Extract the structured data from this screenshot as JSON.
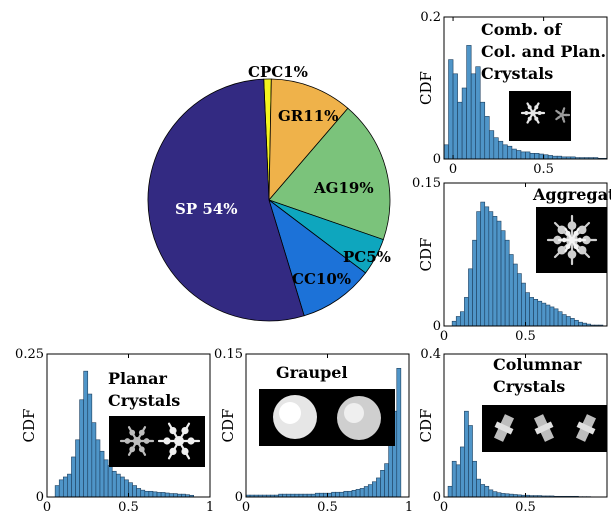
{
  "colors": {
    "bar_fill": "#4f95c8",
    "bar_edge": "#1d3f5e",
    "photo_bg": "#000000"
  },
  "chart_data": [
    {
      "id": "pie",
      "type": "pie",
      "title": "",
      "slices": [
        {
          "label": "SP",
          "value_label": "54%",
          "value": 54,
          "color": "#332a82"
        },
        {
          "label": "CC",
          "value_label": "10%",
          "value": 10,
          "color": "#1c72d8"
        },
        {
          "label": "PC",
          "value_label": "5%",
          "value": 5,
          "color": "#0ea6be"
        },
        {
          "label": "AG",
          "value_label": "19%",
          "value": 19,
          "color": "#7bc37b"
        },
        {
          "label": "GR",
          "value_label": "11%",
          "value": 11,
          "color": "#efb24a"
        },
        {
          "label": "CPC",
          "value_label": "1%",
          "value": 1,
          "color": "#f5f51e"
        }
      ]
    },
    {
      "id": "cpc",
      "type": "bar",
      "title_lines": [
        "Comb. of",
        "Col. and Plan.",
        "Crystals"
      ],
      "ylabel": "CDF",
      "xlim": [
        -0.05,
        0.85
      ],
      "ylim": [
        0,
        0.2
      ],
      "xticks": [
        0,
        0.5
      ],
      "xtick_labels": [
        "0",
        "0.5"
      ],
      "yticks": [
        0,
        0.2
      ],
      "ytick_labels": [
        "0",
        "0.2"
      ],
      "bin_width": 0.025,
      "bin_start": -0.05,
      "values": [
        0.02,
        0.14,
        0.12,
        0.08,
        0.1,
        0.16,
        0.12,
        0.13,
        0.08,
        0.06,
        0.04,
        0.03,
        0.025,
        0.02,
        0.018,
        0.014,
        0.012,
        0.01,
        0.01,
        0.008,
        0.008,
        0.007,
        0.006,
        0.005,
        0.004,
        0.004,
        0.003,
        0.003,
        0.003,
        0.002,
        0.002,
        0.002,
        0.002,
        0.002,
        0.001,
        0.001
      ],
      "photo": "snowflakes"
    },
    {
      "id": "ag",
      "type": "bar",
      "title_lines": [
        "Aggregates"
      ],
      "ylabel": "CDF",
      "xlim": [
        0,
        1
      ],
      "ylim": [
        0,
        0.15
      ],
      "xticks": [
        0,
        0.5,
        1
      ],
      "xtick_labels": [
        "0",
        "0.5",
        ""
      ],
      "yticks": [
        0,
        0.15
      ],
      "ytick_labels": [
        "0",
        "0.15"
      ],
      "bin_width": 0.025,
      "bin_start": 0.05,
      "values": [
        0.005,
        0.01,
        0.015,
        0.03,
        0.06,
        0.09,
        0.12,
        0.13,
        0.125,
        0.12,
        0.115,
        0.11,
        0.1,
        0.09,
        0.075,
        0.065,
        0.055,
        0.045,
        0.035,
        0.03,
        0.028,
        0.026,
        0.024,
        0.022,
        0.02,
        0.018,
        0.015,
        0.012,
        0.01,
        0.008,
        0.006,
        0.004,
        0.003,
        0.002,
        0.001,
        0.001,
        0.001
      ],
      "photo": "aggregate"
    },
    {
      "id": "pl",
      "type": "bar",
      "title_lines": [
        "Planar",
        "Crystals"
      ],
      "ylabel": "CDF",
      "xlim": [
        0,
        1
      ],
      "ylim": [
        0,
        0.25
      ],
      "xticks": [
        0,
        0.5,
        1
      ],
      "xtick_labels": [
        "0",
        "0.5",
        "1"
      ],
      "yticks": [
        0,
        0.25
      ],
      "ytick_labels": [
        "0",
        "0.25"
      ],
      "bin_width": 0.025,
      "bin_start": 0.05,
      "values": [
        0.02,
        0.03,
        0.035,
        0.04,
        0.07,
        0.1,
        0.17,
        0.22,
        0.18,
        0.13,
        0.1,
        0.08,
        0.065,
        0.055,
        0.045,
        0.04,
        0.035,
        0.03,
        0.025,
        0.02,
        0.015,
        0.012,
        0.01,
        0.01,
        0.009,
        0.008,
        0.008,
        0.007,
        0.006,
        0.006,
        0.005,
        0.005,
        0.004,
        0.003
      ],
      "photo": "planar"
    },
    {
      "id": "gr",
      "type": "bar",
      "title_lines": [
        "Graupel"
      ],
      "ylabel": "CDF",
      "xlim": [
        0,
        1
      ],
      "ylim": [
        0,
        0.15
      ],
      "xticks": [
        0,
        0.5,
        1
      ],
      "xtick_labels": [
        "0",
        "0.5",
        "1"
      ],
      "yticks": [
        0,
        0.15
      ],
      "ytick_labels": [
        "0",
        "0.15"
      ],
      "bin_width": 0.025,
      "bin_start": 0.0,
      "values": [
        0.002,
        0.002,
        0.002,
        0.002,
        0.002,
        0.002,
        0.002,
        0.002,
        0.003,
        0.003,
        0.003,
        0.003,
        0.003,
        0.003,
        0.003,
        0.003,
        0.003,
        0.004,
        0.004,
        0.004,
        0.004,
        0.005,
        0.005,
        0.005,
        0.006,
        0.006,
        0.007,
        0.008,
        0.009,
        0.011,
        0.013,
        0.016,
        0.02,
        0.028,
        0.035,
        0.06,
        0.09,
        0.135
      ],
      "photo": "graupel"
    },
    {
      "id": "cc",
      "type": "bar",
      "title_lines": [
        "Columnar",
        "Crystals"
      ],
      "ylabel": "CDF",
      "xlim": [
        0,
        1
      ],
      "ylim": [
        0,
        0.4
      ],
      "xticks": [
        0,
        0.5,
        1
      ],
      "xtick_labels": [
        "0",
        "0.5",
        ""
      ],
      "yticks": [
        0,
        0.4
      ],
      "ytick_labels": [
        "0",
        "0.4"
      ],
      "bin_width": 0.025,
      "bin_start": 0.025,
      "values": [
        0.03,
        0.1,
        0.09,
        0.14,
        0.24,
        0.2,
        0.1,
        0.05,
        0.035,
        0.03,
        0.02,
        0.015,
        0.012,
        0.01,
        0.009,
        0.008,
        0.007,
        0.006,
        0.005,
        0.005,
        0.004,
        0.004,
        0.004,
        0.003,
        0.003,
        0.003,
        0.002,
        0.002,
        0.002,
        0.002,
        0.002,
        0.002,
        0.001,
        0.001,
        0.001
      ],
      "photo": "columnar"
    }
  ]
}
